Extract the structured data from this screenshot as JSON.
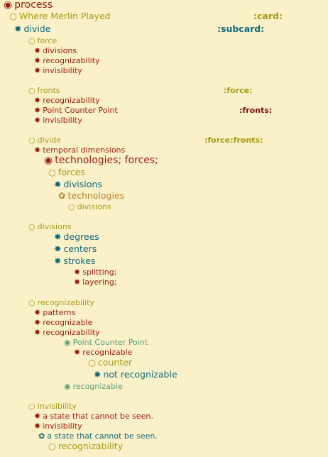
{
  "colors": {
    "background": "#fbf1c9",
    "red": "#9b1c12",
    "olive": "#a59a14",
    "teal": "#0e6b7e",
    "gold": "#b7862a",
    "green": "#56a07c"
  },
  "icons": {
    "bullseye": "◉",
    "circle": "○",
    "star": "✸",
    "flower": "✿"
  },
  "lines": [
    {
      "icon": "bullseye",
      "text": "process"
    },
    {
      "icon": "circle",
      "text": "Where Merlin Played",
      "tag": ":card:"
    },
    {
      "icon": "star",
      "text": "divide",
      "tag": ":subcard:"
    },
    {
      "icon": "circle",
      "text": "force"
    },
    {
      "icon": "star",
      "text": "divisions"
    },
    {
      "icon": "star",
      "text": "recognizability"
    },
    {
      "icon": "star",
      "text": "invisibility"
    },
    {
      "icon": "circle",
      "text": "fronts",
      "tag": ":force:"
    },
    {
      "icon": "star",
      "text": "recognizability"
    },
    {
      "icon": "star",
      "text": "Point Counter Point",
      "tag": ":fronts:"
    },
    {
      "icon": "star",
      "text": "invisibility"
    },
    {
      "icon": "circle",
      "text": "divide",
      "tag": ":force:fronts:"
    },
    {
      "icon": "star",
      "text": "temporal dimensions"
    },
    {
      "icon": "bullseye",
      "text": "technologies; forces;"
    },
    {
      "icon": "circle",
      "text": "forces"
    },
    {
      "icon": "star",
      "text": "divisions"
    },
    {
      "icon": "flower",
      "text": "technologies"
    },
    {
      "icon": "circle",
      "text": "divisions"
    },
    {
      "icon": "circle",
      "text": "divisions"
    },
    {
      "icon": "star",
      "text": "degrees"
    },
    {
      "icon": "star",
      "text": "centers"
    },
    {
      "icon": "star",
      "text": "strokes"
    },
    {
      "icon": "star",
      "text": "splitting;"
    },
    {
      "icon": "star",
      "text": "layering;"
    },
    {
      "icon": "circle",
      "text": "recognizability"
    },
    {
      "icon": "star",
      "text": "patterns"
    },
    {
      "icon": "star",
      "text": "recognizable"
    },
    {
      "icon": "star",
      "text": "recognizability"
    },
    {
      "icon": "bullseye",
      "text": "Point Counter Point"
    },
    {
      "icon": "star",
      "text": "recognizable"
    },
    {
      "icon": "circle",
      "text": "counter"
    },
    {
      "icon": "star",
      "text": "not recognizable"
    },
    {
      "icon": "bullseye",
      "text": "recognizable"
    },
    {
      "icon": "circle",
      "text": "invisibility"
    },
    {
      "icon": "star",
      "text": "a state that cannot be seen."
    },
    {
      "icon": "star",
      "text": "invisibility"
    },
    {
      "icon": "flower",
      "text": "a state that cannot be seen."
    },
    {
      "icon": "circle",
      "text": "recognizability"
    }
  ]
}
